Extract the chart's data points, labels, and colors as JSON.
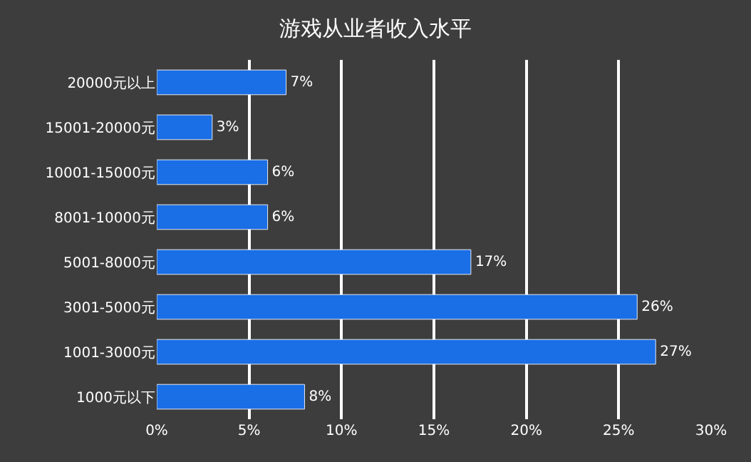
{
  "chart_data": {
    "type": "bar",
    "orientation": "horizontal",
    "title": "游戏从业者收入水平",
    "categories": [
      "20000元以上",
      "15001-20000元",
      "10001-15000元",
      "8001-10000元",
      "5001-8000元",
      "3001-5000元",
      "1001-3000元",
      "1000元以下"
    ],
    "values": [
      7,
      3,
      6,
      6,
      17,
      26,
      27,
      8
    ],
    "value_labels": [
      "7%",
      "3%",
      "6%",
      "6%",
      "17%",
      "26%",
      "27%",
      "8%"
    ],
    "color": "#1a6ee6",
    "xlim": [
      0,
      30
    ],
    "xticks": [
      {
        "value": 0,
        "label": "0%"
      },
      {
        "value": 5,
        "label": "5%"
      },
      {
        "value": 10,
        "label": "10%"
      },
      {
        "value": 15,
        "label": "15%"
      },
      {
        "value": 20,
        "label": "20%"
      },
      {
        "value": 25,
        "label": "25%"
      },
      {
        "value": 30,
        "label": "30%"
      }
    ],
    "grid": "x"
  }
}
